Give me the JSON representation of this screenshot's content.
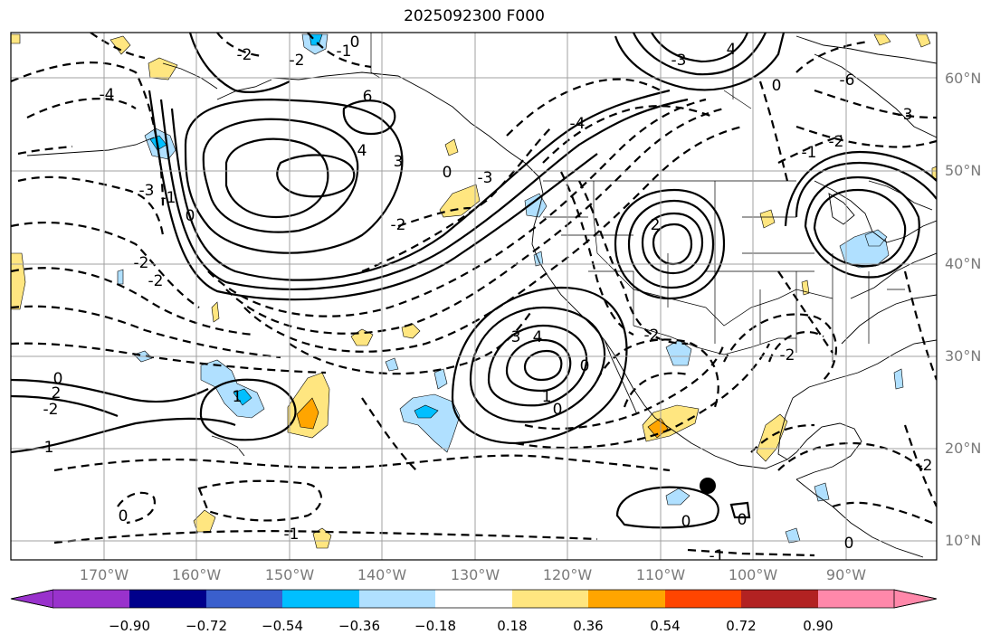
{
  "title": "2025092300 F000",
  "lat_labels": [
    "60°N",
    "50°N",
    "40°N",
    "30°N",
    "20°N",
    "10°N"
  ],
  "lon_labels": [
    "170°W",
    "160°W",
    "150°W",
    "140°W",
    "130°W",
    "120°W",
    "110°W",
    "100°W",
    "90°W"
  ],
  "colorbar": {
    "ticks": [
      "−0.90",
      "−0.72",
      "−0.54",
      "−0.36",
      "−0.18",
      "0.18",
      "0.36",
      "0.54",
      "0.72",
      "0.90"
    ],
    "colors": [
      "#9932cc",
      "#00008b",
      "#3a5fcd",
      "#00bfff",
      "#b0e0ff",
      "#ffffff",
      "#ffe680",
      "#ffa500",
      "#ff4500",
      "#b22222",
      "#ff88aa",
      "#ff88aa"
    ]
  },
  "contour_labels": {
    "l1": "-2",
    "l2": "-2",
    "l3": "-1",
    "l4": "0",
    "l5": "-4",
    "l6": "-3",
    "l7": "-1",
    "l8": "0",
    "l9": "-2",
    "l10": "-2",
    "l11": "6",
    "l12": "4",
    "l13": "3",
    "l14": "0",
    "l15": "-2",
    "l16": "-3",
    "l17": "-4",
    "l18": "-3",
    "l19": "4",
    "l20": "0",
    "l21": "-6",
    "l22": "-3",
    "l23": "-2",
    "l24": "-1",
    "l25": "2",
    "l26": "3",
    "l27": "4",
    "l28": "0",
    "l29": "1",
    "l30": "0",
    "l31": "2",
    "l32": "1",
    "l33": "0",
    "l34": "-2",
    "l35": "-2",
    "l36": "1",
    "l37": "0",
    "l38": "-1",
    "l39": "0",
    "l40": "0",
    "l41": "-1",
    "l42": "0",
    "l43": "-2",
    "l44": "-2"
  },
  "marker": "black-dot"
}
